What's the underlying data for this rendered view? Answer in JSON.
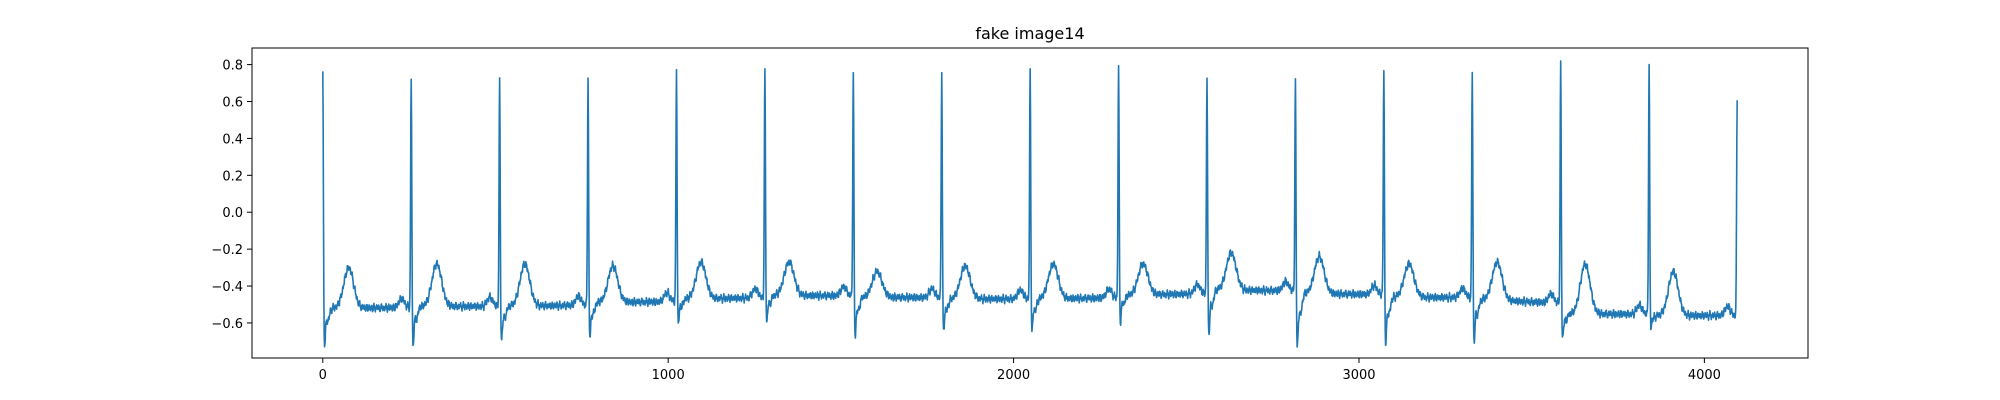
{
  "chart_data": {
    "type": "line",
    "title": "fake image14",
    "xlabel": "",
    "ylabel": "",
    "xlim": [
      -205,
      4300
    ],
    "ylim": [
      -0.79,
      0.89
    ],
    "xticks": [
      0,
      1000,
      2000,
      3000,
      4000
    ],
    "xtick_labels": [
      "0",
      "1000",
      "2000",
      "3000",
      "4000"
    ],
    "yticks": [
      0.8,
      0.6,
      0.4,
      0.2,
      0.0,
      -0.2,
      -0.4,
      -0.6
    ],
    "ytick_labels": [
      "0.8",
      "0.6",
      "0.4",
      "0.2",
      "0.0",
      "−0.2",
      "−0.4",
      "−0.6"
    ],
    "grid": false,
    "series_color": "#1f77b4",
    "n_samples": 4096,
    "beats": [
      {
        "r_x": 0,
        "r_peak": 0.78,
        "s_min": -0.71,
        "t_x": 75,
        "t_peak": -0.3,
        "baseline": -0.52
      },
      {
        "r_x": 256,
        "r_peak": 0.76,
        "s_min": -0.71,
        "t_x": 330,
        "t_peak": -0.28,
        "baseline": -0.51
      },
      {
        "r_x": 512,
        "r_peak": 0.75,
        "s_min": -0.69,
        "t_x": 585,
        "t_peak": -0.28,
        "baseline": -0.51
      },
      {
        "r_x": 768,
        "r_peak": 0.75,
        "s_min": -0.67,
        "t_x": 840,
        "t_peak": -0.29,
        "baseline": -0.49
      },
      {
        "r_x": 1024,
        "r_peak": 0.8,
        "s_min": -0.6,
        "t_x": 1095,
        "t_peak": -0.27,
        "baseline": -0.47
      },
      {
        "r_x": 1280,
        "r_peak": 0.79,
        "s_min": -0.59,
        "t_x": 1350,
        "t_peak": -0.27,
        "baseline": -0.45
      },
      {
        "r_x": 1536,
        "r_peak": 0.78,
        "s_min": -0.66,
        "t_x": 1605,
        "t_peak": -0.32,
        "baseline": -0.46
      },
      {
        "r_x": 1792,
        "r_peak": 0.79,
        "s_min": -0.64,
        "t_x": 1860,
        "t_peak": -0.29,
        "baseline": -0.47
      },
      {
        "r_x": 2048,
        "r_peak": 0.8,
        "s_min": -0.64,
        "t_x": 2115,
        "t_peak": -0.28,
        "baseline": -0.47
      },
      {
        "r_x": 2304,
        "r_peak": 0.81,
        "s_min": -0.59,
        "t_x": 2375,
        "t_peak": -0.28,
        "baseline": -0.45
      },
      {
        "r_x": 2560,
        "r_peak": 0.76,
        "s_min": -0.65,
        "t_x": 2630,
        "t_peak": -0.22,
        "baseline": -0.42
      },
      {
        "r_x": 2816,
        "r_peak": 0.76,
        "s_min": -0.72,
        "t_x": 2885,
        "t_peak": -0.24,
        "baseline": -0.44
      },
      {
        "r_x": 3072,
        "r_peak": 0.81,
        "s_min": -0.7,
        "t_x": 3145,
        "t_peak": -0.28,
        "baseline": -0.46
      },
      {
        "r_x": 3328,
        "r_peak": 0.79,
        "s_min": -0.69,
        "t_x": 3400,
        "t_peak": -0.27,
        "baseline": -0.47
      },
      {
        "r_x": 3584,
        "r_peak": 0.82,
        "s_min": -0.68,
        "t_x": 3655,
        "t_peak": -0.28,
        "baseline": -0.55
      },
      {
        "r_x": 3840,
        "r_peak": 0.82,
        "s_min": -0.63,
        "t_x": 3910,
        "t_peak": -0.32,
        "baseline": -0.56
      },
      {
        "r_x": 4095,
        "r_peak": 0.61,
        "s_min": -0.6,
        "t_x": 4200,
        "t_peak": -0.5,
        "baseline": -0.56
      }
    ]
  }
}
